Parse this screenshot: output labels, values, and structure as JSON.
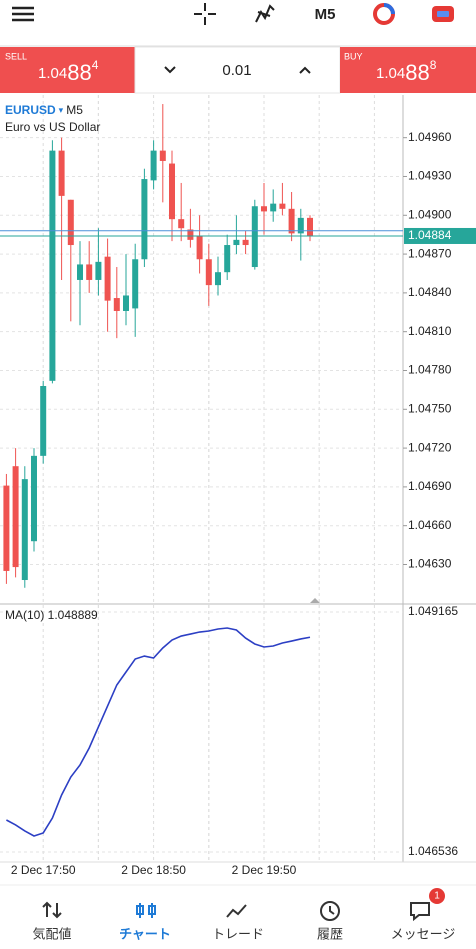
{
  "toolbar": {
    "timeframe": "M5"
  },
  "trade": {
    "sell": {
      "label": "SELL",
      "price_main": "1.04",
      "price_big": "88",
      "price_sup": "4"
    },
    "lots": "0.01",
    "buy": {
      "label": "BUY",
      "price_main": "1.04",
      "price_big": "88",
      "price_sup": "8"
    }
  },
  "chart_data": [
    {
      "type": "candlestick",
      "symbol": "EURUSD",
      "timeframe": "M5",
      "description": "Euro vs US Dollar",
      "up_color": "#26a69a",
      "down_color": "#ef5350",
      "open": [
        1.04691,
        1.04706,
        1.04618,
        1.04648,
        1.04714,
        1.04772,
        1.0495,
        1.04912,
        1.0485,
        1.04862,
        1.0485,
        1.04868,
        1.04836,
        1.04826,
        1.04828,
        1.04866,
        1.04927,
        1.0495,
        1.0494,
        1.04897,
        1.04889,
        1.04884,
        1.04866,
        1.04846,
        1.04856,
        1.04877,
        1.04881,
        1.0486,
        1.04907,
        1.04903,
        1.04909,
        1.04905,
        1.04886,
        1.04898
      ],
      "high": [
        1.047,
        1.0472,
        1.04706,
        1.0472,
        1.04772,
        1.04958,
        1.0496,
        1.04912,
        1.0488,
        1.0488,
        1.0489,
        1.04882,
        1.0486,
        1.0487,
        1.04878,
        1.04936,
        1.04958,
        1.04986,
        1.0495,
        1.04925,
        1.04905,
        1.049,
        1.04878,
        1.04868,
        1.04885,
        1.049,
        1.04888,
        1.04912,
        1.04925,
        1.0492,
        1.04925,
        1.04918,
        1.04905,
        1.049
      ],
      "low": [
        1.04615,
        1.0462,
        1.04612,
        1.0464,
        1.04708,
        1.0477,
        1.0485,
        1.04818,
        1.04815,
        1.0484,
        1.04838,
        1.0481,
        1.04805,
        1.04815,
        1.04806,
        1.0486,
        1.0492,
        1.0491,
        1.0488,
        1.0488,
        1.04875,
        1.04855,
        1.0483,
        1.04838,
        1.0485,
        1.0487,
        1.0487,
        1.04858,
        1.04885,
        1.04895,
        1.049,
        1.0488,
        1.04865,
        1.0488
      ],
      "close": [
        1.04625,
        1.04628,
        1.04696,
        1.04714,
        1.04768,
        1.0495,
        1.04915,
        1.04877,
        1.04862,
        1.0485,
        1.04864,
        1.04834,
        1.04826,
        1.04838,
        1.04866,
        1.04928,
        1.0495,
        1.04942,
        1.04897,
        1.0489,
        1.04881,
        1.04866,
        1.04846,
        1.04856,
        1.04877,
        1.04881,
        1.04877,
        1.04907,
        1.04903,
        1.04909,
        1.04905,
        1.04886,
        1.04898,
        1.04884
      ],
      "bid": 1.04884,
      "bid_color": "#26a69a",
      "ask": 1.04888,
      "ask_color": "#4a90d9",
      "ylim": [
        1.04601,
        1.04993
      ],
      "yticks": [
        {
          "value": 1.0496,
          "label": "1.04960"
        },
        {
          "value": 1.0493,
          "label": "1.04930"
        },
        {
          "value": 1.049,
          "label": "1.04900"
        },
        {
          "value": 1.0487,
          "label": "1.04870"
        },
        {
          "value": 1.0484,
          "label": "1.04840"
        },
        {
          "value": 1.0481,
          "label": "1.04810"
        },
        {
          "value": 1.0478,
          "label": "1.04780"
        },
        {
          "value": 1.0475,
          "label": "1.04750"
        },
        {
          "value": 1.0472,
          "label": "1.04720"
        },
        {
          "value": 1.0469,
          "label": "1.04690"
        },
        {
          "value": 1.0466,
          "label": "1.04660"
        },
        {
          "value": 1.0463,
          "label": "1.04630"
        }
      ],
      "xticks": [
        {
          "value": 4,
          "label": "2 Dec 17:50"
        },
        {
          "value": 16,
          "label": "2 Dec 18:50"
        },
        {
          "value": 28,
          "label": "2 Dec 19:50"
        }
      ],
      "grid": true
    },
    {
      "type": "line",
      "title": "MA(10) 1.048889",
      "color": "#2c3fc4",
      "values": [
        1.046887,
        1.046833,
        1.046767,
        1.046712,
        1.046745,
        1.046909,
        1.047161,
        1.047358,
        1.04749,
        1.047676,
        1.047906,
        1.048136,
        1.048366,
        1.048508,
        1.04865,
        1.048683,
        1.048661,
        1.048771,
        1.048858,
        1.048902,
        1.048924,
        1.048946,
        1.048957,
        1.048979,
        1.04899,
        1.048968,
        1.04888,
        1.048815,
        1.048782,
        1.048793,
        1.048826,
        1.048847,
        1.04887,
        1.048889
      ],
      "ylim": [
        1.046449,
        1.049242
      ],
      "yticks": [
        1.049165,
        1.046536
      ],
      "grid": true
    }
  ],
  "nav": [
    {
      "label": "気配値"
    },
    {
      "label": "チャート"
    },
    {
      "label": "トレード"
    },
    {
      "label": "履歴"
    },
    {
      "label": "メッセージ",
      "badge": "1"
    }
  ]
}
